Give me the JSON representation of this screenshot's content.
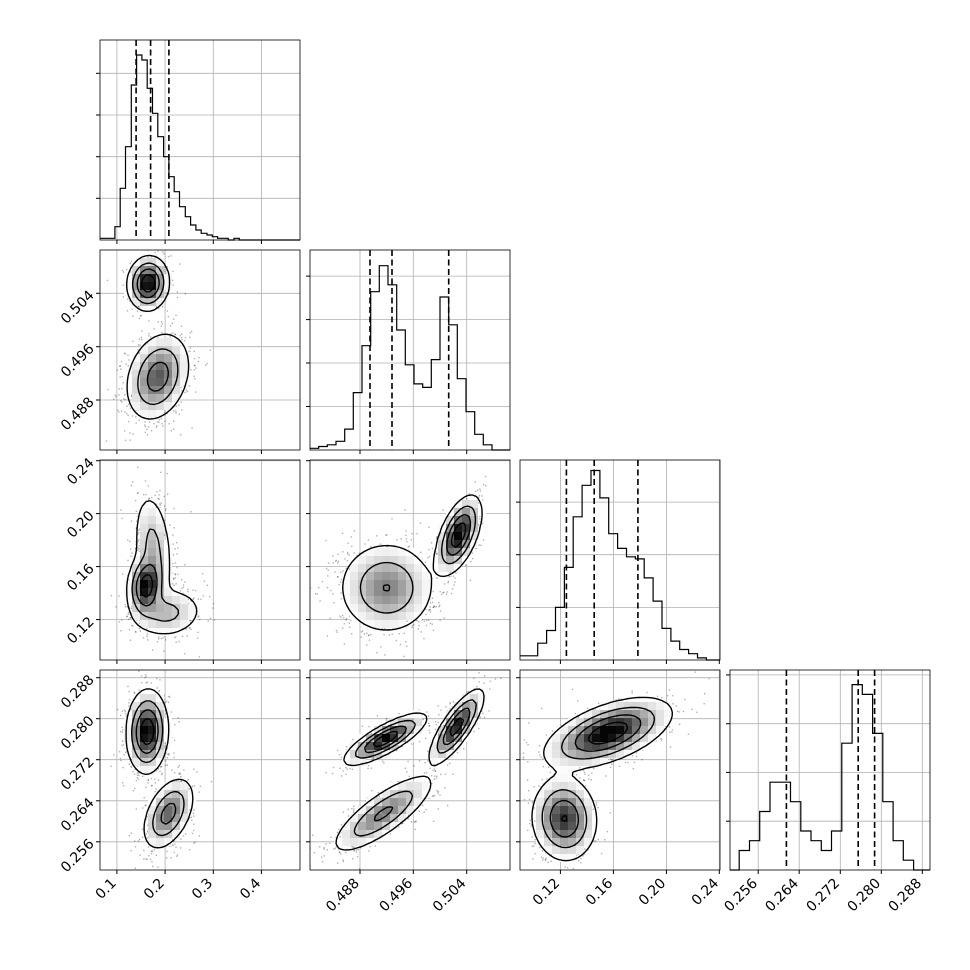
{
  "chart_data": {
    "type": "corner",
    "parameters": [
      "",
      "",
      "",
      ""
    ],
    "grid": true,
    "colors": {
      "points": "#000000",
      "contour": "#000000",
      "fill": "#ffffff"
    },
    "axes": [
      {
        "range": [
          0.065,
          0.48
        ],
        "ticks": [
          0.1,
          0.2,
          0.3,
          0.4
        ],
        "tick_labels": [
          "0.1",
          "0.2",
          "0.3",
          "0.4"
        ]
      },
      {
        "range": [
          0.4805,
          0.5105
        ],
        "ticks": [
          0.488,
          0.496,
          0.504
        ],
        "tick_labels": [
          "0.488",
          "0.496",
          "0.504"
        ]
      },
      {
        "range": [
          0.0895,
          0.2405
        ],
        "ticks": [
          0.12,
          0.16,
          0.2,
          0.24
        ],
        "tick_labels": [
          "0.12",
          "0.16",
          "0.20",
          "0.24"
        ]
      },
      {
        "range": [
          0.2505,
          0.2895
        ],
        "ticks": [
          0.256,
          0.264,
          0.272,
          0.28,
          0.288
        ],
        "tick_labels": [
          "0.256",
          "0.264",
          "0.272",
          "0.280",
          "0.288"
        ]
      }
    ],
    "diagonal": [
      {
        "bins": [
          [
            0.065,
            0.072,
            1
          ],
          [
            0.072,
            0.096,
            1
          ],
          [
            0.096,
            0.107,
            8
          ],
          [
            0.107,
            0.118,
            31
          ],
          [
            0.118,
            0.13,
            56
          ],
          [
            0.13,
            0.141,
            93
          ],
          [
            0.141,
            0.152,
            111
          ],
          [
            0.152,
            0.163,
            108
          ],
          [
            0.163,
            0.174,
            91
          ],
          [
            0.174,
            0.185,
            76
          ],
          [
            0.185,
            0.197,
            62
          ],
          [
            0.197,
            0.208,
            50
          ],
          [
            0.208,
            0.219,
            38
          ],
          [
            0.219,
            0.23,
            29
          ],
          [
            0.23,
            0.242,
            20
          ],
          [
            0.242,
            0.253,
            14
          ],
          [
            0.253,
            0.264,
            9
          ],
          [
            0.264,
            0.275,
            6
          ],
          [
            0.275,
            0.287,
            4
          ],
          [
            0.287,
            0.298,
            3
          ],
          [
            0.298,
            0.309,
            2
          ],
          [
            0.309,
            0.32,
            1
          ],
          [
            0.32,
            0.331,
            1
          ],
          [
            0.331,
            0.343,
            0
          ],
          [
            0.343,
            0.354,
            1
          ],
          [
            0.354,
            0.48,
            0
          ]
        ],
        "ymax": 120,
        "quantiles": [
          0.14,
          0.17,
          0.208
        ]
      },
      {
        "bins": [
          [
            0.4805,
            0.4818,
            1
          ],
          [
            0.4818,
            0.4831,
            2
          ],
          [
            0.4831,
            0.4844,
            3
          ],
          [
            0.4844,
            0.4857,
            5
          ],
          [
            0.4857,
            0.487,
            12
          ],
          [
            0.487,
            0.4883,
            33
          ],
          [
            0.4883,
            0.4896,
            60
          ],
          [
            0.4896,
            0.4909,
            91
          ],
          [
            0.4909,
            0.4922,
            106
          ],
          [
            0.4922,
            0.4935,
            95
          ],
          [
            0.4935,
            0.4948,
            69
          ],
          [
            0.4948,
            0.4961,
            49
          ],
          [
            0.4961,
            0.4974,
            38
          ],
          [
            0.4974,
            0.4987,
            36
          ],
          [
            0.4987,
            0.5,
            52
          ],
          [
            0.5,
            0.5013,
            88
          ],
          [
            0.5013,
            0.5026,
            72
          ],
          [
            0.5026,
            0.5039,
            41
          ],
          [
            0.5039,
            0.5052,
            22
          ],
          [
            0.5052,
            0.5065,
            9
          ],
          [
            0.5065,
            0.5078,
            3
          ],
          [
            0.5078,
            0.5105,
            0
          ]
        ],
        "ymax": 115,
        "quantiles": [
          0.4895,
          0.4928,
          0.5013
        ]
      },
      {
        "bins": [
          [
            0.0895,
            0.0962,
            2
          ],
          [
            0.0962,
            0.1029,
            2
          ],
          [
            0.1029,
            0.1096,
            8
          ],
          [
            0.1096,
            0.1163,
            14
          ],
          [
            0.1163,
            0.123,
            25
          ],
          [
            0.123,
            0.1297,
            44
          ],
          [
            0.1297,
            0.1364,
            68
          ],
          [
            0.1364,
            0.1431,
            83
          ],
          [
            0.1431,
            0.1498,
            90
          ],
          [
            0.1498,
            0.1565,
            77
          ],
          [
            0.1565,
            0.1632,
            60
          ],
          [
            0.1632,
            0.1699,
            53
          ],
          [
            0.1699,
            0.1766,
            49
          ],
          [
            0.1766,
            0.1833,
            48
          ],
          [
            0.1833,
            0.19,
            39
          ],
          [
            0.19,
            0.1967,
            28
          ],
          [
            0.1967,
            0.2034,
            15
          ],
          [
            0.2034,
            0.2101,
            9
          ],
          [
            0.2101,
            0.2168,
            5
          ],
          [
            0.2168,
            0.2235,
            3
          ],
          [
            0.2235,
            0.2302,
            1
          ],
          [
            0.2302,
            0.2405,
            0
          ]
        ],
        "ymax": 95,
        "quantiles": [
          0.1245,
          0.1455,
          0.1785
        ]
      },
      {
        "bins": [
          [
            0.2505,
            0.2523,
            0
          ],
          [
            0.2523,
            0.2543,
            2
          ],
          [
            0.2543,
            0.2563,
            3
          ],
          [
            0.2563,
            0.2583,
            6
          ],
          [
            0.2583,
            0.2603,
            9
          ],
          [
            0.2603,
            0.2623,
            9
          ],
          [
            0.2623,
            0.2643,
            7
          ],
          [
            0.2643,
            0.2663,
            4
          ],
          [
            0.2663,
            0.2683,
            3
          ],
          [
            0.2683,
            0.2703,
            2
          ],
          [
            0.2703,
            0.2723,
            4
          ],
          [
            0.2723,
            0.2743,
            13
          ],
          [
            0.2743,
            0.2763,
            19
          ],
          [
            0.2763,
            0.2783,
            18
          ],
          [
            0.2783,
            0.2803,
            14
          ],
          [
            0.2803,
            0.2823,
            7
          ],
          [
            0.2823,
            0.2843,
            3
          ],
          [
            0.2843,
            0.2863,
            1
          ],
          [
            0.2863,
            0.2895,
            0
          ]
        ],
        "ymax": 20.5,
        "quantiles": [
          0.2615,
          0.2755,
          0.2787
        ]
      }
    ],
    "pairs": [
      {
        "x": 0,
        "y": 1,
        "modes": [
          {
            "mx": 0.165,
            "my": 0.5055,
            "sx": 0.019,
            "sy": 0.0018,
            "rho": 0.05,
            "w": 0.38
          },
          {
            "mx": 0.185,
            "my": 0.4915,
            "sx": 0.03,
            "sy": 0.003,
            "rho": 0.25,
            "w": 0.62
          }
        ]
      },
      {
        "x": 0,
        "y": 2,
        "modes": [
          {
            "mx": 0.16,
            "my": 0.145,
            "sx": 0.017,
            "sy": 0.011,
            "rho": 0.1,
            "w": 0.45
          },
          {
            "mx": 0.175,
            "my": 0.175,
            "sx": 0.019,
            "sy": 0.02,
            "rho": -0.25,
            "w": 0.3
          },
          {
            "mx": 0.205,
            "my": 0.125,
            "sx": 0.035,
            "sy": 0.009,
            "rho": 0.1,
            "w": 0.25
          }
        ]
      },
      {
        "x": 0,
        "y": 3,
        "modes": [
          {
            "mx": 0.163,
            "my": 0.2775,
            "sx": 0.019,
            "sy": 0.0036,
            "rho": 0.05,
            "w": 0.62
          },
          {
            "mx": 0.207,
            "my": 0.2615,
            "sx": 0.024,
            "sy": 0.0032,
            "rho": 0.45,
            "w": 0.38
          }
        ]
      },
      {
        "x": 1,
        "y": 2,
        "modes": [
          {
            "mx": 0.492,
            "my": 0.144,
            "sx": 0.0033,
            "sy": 0.016,
            "rho": 0.0,
            "w": 0.62
          },
          {
            "mx": 0.5028,
            "my": 0.184,
            "sx": 0.0015,
            "sy": 0.013,
            "rho": 0.55,
            "w": 0.38
          }
        ]
      },
      {
        "x": 1,
        "y": 3,
        "modes": [
          {
            "mx": 0.4918,
            "my": 0.276,
            "sx": 0.0027,
            "sy": 0.0022,
            "rho": 0.8,
            "w": 0.33
          },
          {
            "mx": 0.5025,
            "my": 0.2785,
            "sx": 0.0018,
            "sy": 0.0032,
            "rho": 0.8,
            "w": 0.3
          },
          {
            "mx": 0.4915,
            "my": 0.2615,
            "sx": 0.0035,
            "sy": 0.0035,
            "rho": 0.8,
            "w": 0.37
          }
        ]
      },
      {
        "x": 2,
        "y": 3,
        "modes": [
          {
            "mx": 0.156,
            "my": 0.2772,
            "sx": 0.021,
            "sy": 0.003,
            "rho": 0.55,
            "w": 0.62
          },
          {
            "mx": 0.123,
            "my": 0.2605,
            "sx": 0.011,
            "sy": 0.0037,
            "rho": -0.05,
            "w": 0.38
          }
        ]
      }
    ]
  }
}
